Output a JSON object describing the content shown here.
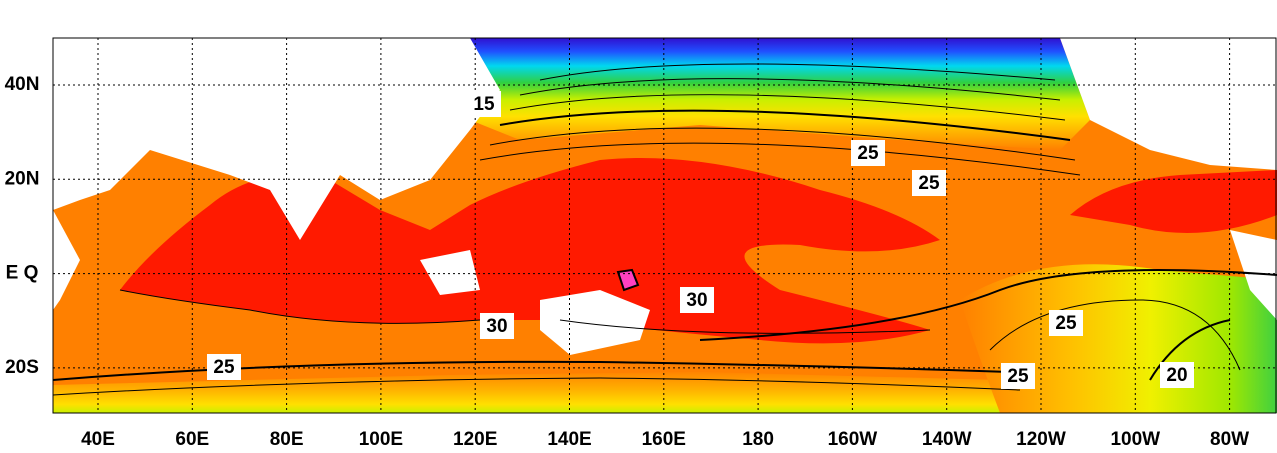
{
  "map": {
    "lon_labels": [
      "40E",
      "60E",
      "80E",
      "100E",
      "120E",
      "140E",
      "160E",
      "180",
      "160W",
      "140W",
      "120W",
      "100W",
      "80W"
    ],
    "lat_labels": [
      "40N",
      "20N",
      "E Q",
      "20S"
    ],
    "contour_labels": [
      15,
      25,
      25,
      30,
      30,
      25,
      25,
      25,
      20
    ]
  }
}
